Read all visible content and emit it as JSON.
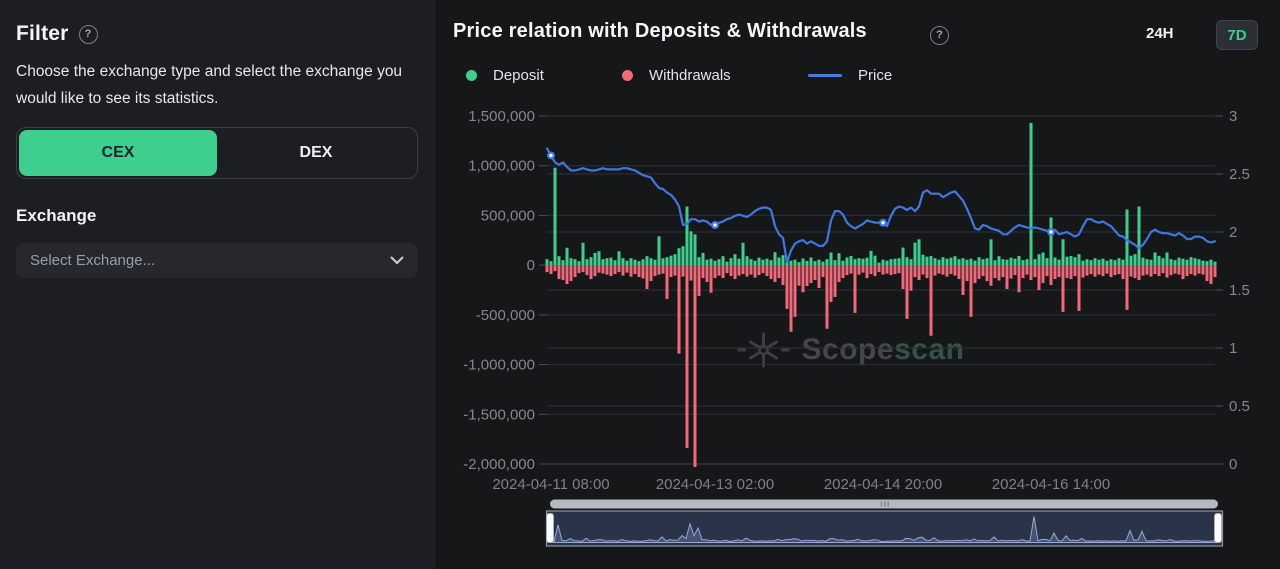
{
  "sidebar": {
    "title": "Filter",
    "description": "Choose the exchange type and select the exchange you would like to see its statistics.",
    "exchange_types": [
      "CEX",
      "DEX"
    ],
    "selected_exchange_type": "CEX",
    "exchange_label": "Exchange",
    "exchange_select_placeholder": "Select Exchange..."
  },
  "header": {
    "title": "Price relation with Deposits & Withdrawals",
    "range_options": [
      "24H",
      "7D"
    ],
    "selected_range": "7D"
  },
  "icons": {
    "help_glyph": "?"
  },
  "legend": [
    {
      "label": "Deposit",
      "color": "#3ecf8e",
      "type": "dot"
    },
    {
      "label": "Withdrawals",
      "color": "#f2697a",
      "type": "dot"
    },
    {
      "label": "Price",
      "color": "#4a7dd9",
      "type": "line"
    }
  ],
  "watermark": {
    "text_primary": "Scope",
    "text_secondary": "scan"
  },
  "colors": {
    "deposit": "#3ecf8e",
    "withdrawal": "#f2697a",
    "price_line": "#3f78e0",
    "grid": "#2d3039",
    "axis": "#3e424b",
    "tick": "#4a4e58",
    "scrollbar": "#b5b9c1",
    "brush_fill": "#2b3349",
    "brush_border": "#8d95a6",
    "brush_line": "#96a9d8",
    "handle": "#fbfcfd"
  },
  "chart_data": {
    "type": "bar+line combo",
    "x_interval_hours": 1,
    "x_tick_labels": [
      "2024-04-11 08:00",
      "2024-04-13 02:00",
      "2024-04-14 20:00",
      "2024-04-16 14:00"
    ],
    "x_tick_indices": [
      1,
      42,
      84,
      126
    ],
    "left_axis": {
      "min": -2000000,
      "max": 1500000,
      "tick_labels": [
        "1,500,000",
        "1,000,000",
        "500,000",
        "0",
        "-500,000",
        "-1,000,000",
        "-1,500,000",
        "-2,000,000"
      ]
    },
    "right_axis": {
      "min": 0,
      "max": 3,
      "tick_labels": [
        "3",
        "2.5",
        "2",
        "1.5",
        "1",
        "0.5",
        "0"
      ]
    },
    "grid": true,
    "legend_position": "top",
    "series": [
      {
        "name": "Deposit",
        "type": "bar",
        "axis": "left",
        "color": "#3ecf8e",
        "values": [
          60000,
          40000,
          980000,
          90000,
          50000,
          175000,
          70000,
          60000,
          40000,
          225000,
          60000,
          80000,
          123000,
          140000,
          60000,
          70000,
          75000,
          50000,
          140000,
          70000,
          45000,
          70000,
          55000,
          40000,
          60000,
          90000,
          70000,
          55000,
          290000,
          70000,
          80000,
          95000,
          110000,
          170000,
          190000,
          590000,
          340000,
          310000,
          80000,
          123000,
          55000,
          65000,
          45000,
          60000,
          90000,
          35000,
          70000,
          110000,
          65000,
          225000,
          90000,
          60000,
          45000,
          75000,
          55000,
          65000,
          50000,
          130000,
          77000,
          100000,
          60000,
          45000,
          55000,
          30000,
          67000,
          43000,
          77000,
          40000,
          55000,
          35000,
          60000,
          127000,
          50000,
          120000,
          45000,
          77000,
          93000,
          60000,
          70000,
          65000,
          75000,
          143000,
          95000,
          25000,
          55000,
          45000,
          60000,
          65000,
          70000,
          177000,
          80000,
          60000,
          227000,
          260000,
          105000,
          85000,
          93000,
          70000,
          55000,
          80000,
          65000,
          75000,
          90000,
          60000,
          70000,
          55000,
          65000,
          45000,
          80000,
          60000,
          70000,
          260000,
          50000,
          90000,
          60000,
          55000,
          75000,
          65000,
          93000,
          50000,
          60000,
          1430000,
          60000,
          110000,
          127000,
          70000,
          480000,
          77000,
          55000,
          260000,
          85000,
          93000,
          80000,
          110000,
          45000,
          60000,
          50000,
          70000,
          55000,
          65000,
          45000,
          60000,
          50000,
          70000,
          55000,
          560000,
          95000,
          110000,
          590000,
          75000,
          60000,
          55000,
          127000,
          93000,
          70000,
          127000,
          60000,
          50000,
          75000,
          65000,
          55000,
          80000,
          70000,
          60000,
          45000,
          40000,
          55000,
          35000
        ]
      },
      {
        "name": "Withdrawals",
        "type": "bar",
        "axis": "left",
        "color": "#f2697a",
        "values": [
          -70000,
          -90000,
          -60000,
          -140000,
          -150000,
          -190000,
          -160000,
          -120000,
          -80000,
          -70000,
          -100000,
          -140000,
          -110000,
          -75000,
          -85000,
          -95000,
          -110000,
          -90000,
          -70000,
          -105000,
          -75000,
          -115000,
          -90000,
          -120000,
          -135000,
          -240000,
          -160000,
          -110000,
          -95000,
          -85000,
          -340000,
          -120000,
          -105000,
          -890000,
          -115000,
          -1840000,
          -155000,
          -2030000,
          -310000,
          -130000,
          -170000,
          -277000,
          -130000,
          -105000,
          -130000,
          -80000,
          -110000,
          -140000,
          -105000,
          -90000,
          -115000,
          -95000,
          -125000,
          -100000,
          -80000,
          -110000,
          -140000,
          -170000,
          -130000,
          -200000,
          -440000,
          -670000,
          -520000,
          -207000,
          -273000,
          -210000,
          -180000,
          -150000,
          -230000,
          -120000,
          -640000,
          -370000,
          -320000,
          -170000,
          -130000,
          -100000,
          -85000,
          -480000,
          -95000,
          -75000,
          -130000,
          -90000,
          -110000,
          -70000,
          -95000,
          -85000,
          -100000,
          -90000,
          -80000,
          -240000,
          -540000,
          -257000,
          -120000,
          -150000,
          -95000,
          -130000,
          -710000,
          -105000,
          -85000,
          -95000,
          -115000,
          -90000,
          -105000,
          -140000,
          -300000,
          -160000,
          -520000,
          -180000,
          -140000,
          -110000,
          -160000,
          -207000,
          -130000,
          -155000,
          -120000,
          -240000,
          -135000,
          -100000,
          -273000,
          -130000,
          -95000,
          -150000,
          -120000,
          -250000,
          -180000,
          -110000,
          -200000,
          -140000,
          -120000,
          -470000,
          -130000,
          -140000,
          -110000,
          -460000,
          -125000,
          -105000,
          -90000,
          -115000,
          -95000,
          -110000,
          -85000,
          -120000,
          -100000,
          -90000,
          -140000,
          -450000,
          -115000,
          -130000,
          -150000,
          -105000,
          -95000,
          -115000,
          -90000,
          -110000,
          -80000,
          -125000,
          -100000,
          -85000,
          -95000,
          -140000,
          -110000,
          -90000,
          -105000,
          -85000,
          -95000,
          -160000,
          -190000,
          -120000
        ]
      },
      {
        "name": "Price",
        "type": "line",
        "axis": "right",
        "color": "#3f78e0",
        "values": [
          2.72,
          2.66,
          2.6,
          2.58,
          2.6,
          2.56,
          2.53,
          2.53,
          2.54,
          2.55,
          2.54,
          2.53,
          2.53,
          2.54,
          2.55,
          2.54,
          2.54,
          2.54,
          2.54,
          2.55,
          2.55,
          2.54,
          2.53,
          2.51,
          2.49,
          2.48,
          2.47,
          2.42,
          2.38,
          2.37,
          2.34,
          2.32,
          2.28,
          2.22,
          2.06,
          2.07,
          2.11,
          2.11,
          2.09,
          2.1,
          2.09,
          2.06,
          2.06,
          2.08,
          2.09,
          2.11,
          2.12,
          2.14,
          2.15,
          2.14,
          2.13,
          2.15,
          2.18,
          2.2,
          2.21,
          2.21,
          2.19,
          2.05,
          1.98,
          1.95,
          1.74,
          1.84,
          1.9,
          1.92,
          1.93,
          1.9,
          1.92,
          1.9,
          1.88,
          1.88,
          1.92,
          2.1,
          2.18,
          2.18,
          2.15,
          2.08,
          2.05,
          2.03,
          2.05,
          2.07,
          2.1,
          2.09,
          2.08,
          2.08,
          2.08,
          2.05,
          2.14,
          2.2,
          2.22,
          2.21,
          2.19,
          2.21,
          2.18,
          2.22,
          2.34,
          2.36,
          2.33,
          2.33,
          2.33,
          2.3,
          2.32,
          2.34,
          2.35,
          2.31,
          2.27,
          2.2,
          2.12,
          2.03,
          2.02,
          2.06,
          2.05,
          2.03,
          2.02,
          2.01,
          1.98,
          1.98,
          2.01,
          2.04,
          2.06,
          2.05,
          2.04,
          2.03,
          2.04,
          2.03,
          2.02,
          2.01,
          2.0,
          2.02,
          1.98,
          1.99,
          2.0,
          1.98,
          1.96,
          1.98,
          2.05,
          2.11,
          2.11,
          2.09,
          2.08,
          2.09,
          2.07,
          2.05,
          2.01,
          1.97,
          1.96,
          1.93,
          1.91,
          1.89,
          1.86,
          1.89,
          1.94,
          2.0,
          2.02,
          2.0,
          1.99,
          1.99,
          1.98,
          1.97,
          1.99,
          1.97,
          1.94,
          1.94,
          1.96,
          1.96,
          1.95,
          1.92,
          1.91,
          1.92
        ]
      }
    ]
  }
}
